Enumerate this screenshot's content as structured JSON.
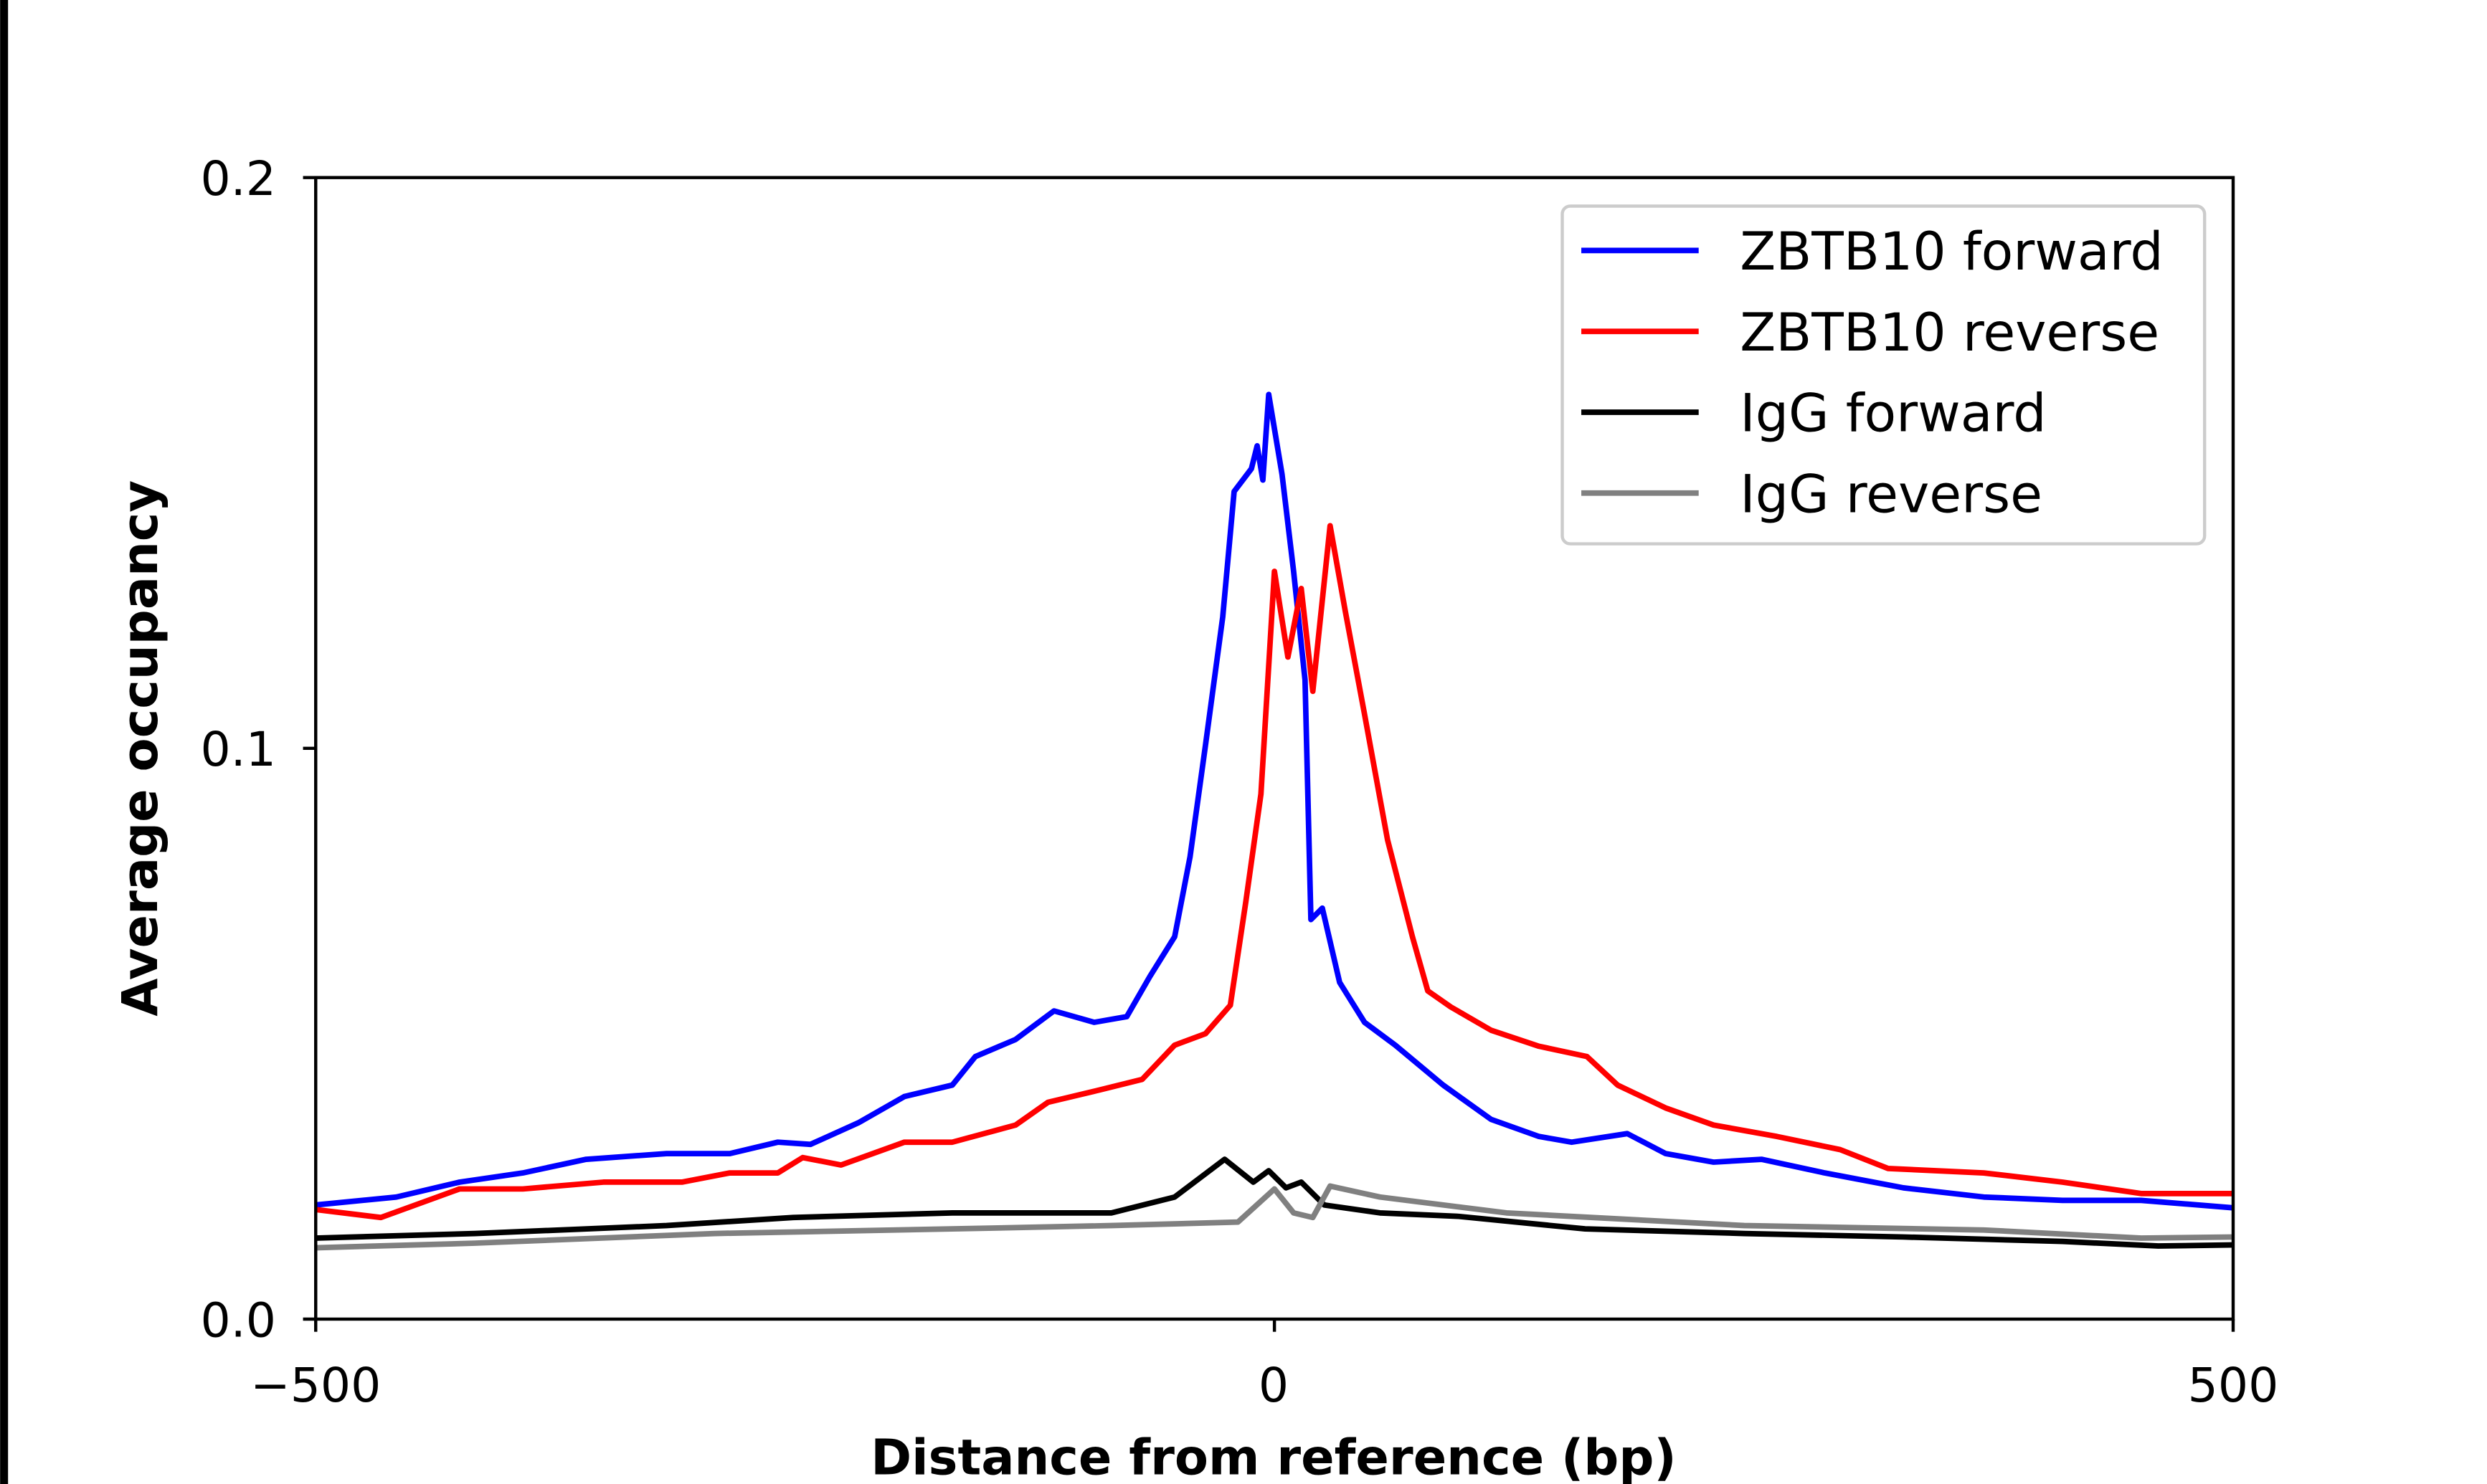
{
  "chart_data": {
    "type": "line",
    "title": "",
    "xlabel": "Distance from reference (bp)",
    "ylabel": "Average occupancy",
    "xlim": [
      -500,
      500
    ],
    "ylim": [
      0.0,
      0.2
    ],
    "xticks": [
      -500,
      0,
      500
    ],
    "xtick_labels": [
      "−500",
      "0",
      "500"
    ],
    "yticks": [
      0.0,
      0.1,
      0.2
    ],
    "ytick_labels": [
      "0.0",
      "0.1",
      "0.2"
    ],
    "grid": false,
    "legend_position": "top-right",
    "series": [
      {
        "name": "ZBTB10 forward",
        "color": "#0000ff",
        "x": [
          -500,
          -458,
          -425,
          -392,
          -359,
          -317,
          -284,
          -259,
          -242,
          -217,
          -193,
          -168,
          -156,
          -135,
          -115,
          -94,
          -77,
          -65,
          -52,
          -44,
          -36,
          -27,
          -21,
          -12,
          -9,
          -6,
          -3,
          4,
          10,
          16,
          19,
          25,
          34,
          47,
          63,
          88,
          113,
          138,
          155,
          184,
          204,
          229,
          254,
          287,
          328,
          370,
          411,
          452,
          500
        ],
        "y": [
          0.02,
          0.0214,
          0.024,
          0.0256,
          0.028,
          0.029,
          0.029,
          0.031,
          0.0306,
          0.0344,
          0.039,
          0.041,
          0.046,
          0.049,
          0.054,
          0.052,
          0.053,
          0.06,
          0.067,
          0.081,
          0.1005,
          0.123,
          0.145,
          0.149,
          0.153,
          0.147,
          0.162,
          0.148,
          0.131,
          0.112,
          0.07,
          0.072,
          0.059,
          0.052,
          0.048,
          0.041,
          0.035,
          0.032,
          0.031,
          0.0325,
          0.029,
          0.0275,
          0.028,
          0.0256,
          0.023,
          0.0214,
          0.0208,
          0.0208,
          0.0195
        ]
      },
      {
        "name": "ZBTB10 reverse",
        "color": "#ff0000",
        "x": [
          -500,
          -466,
          -425,
          -392,
          -350,
          -309,
          -284,
          -259,
          -246,
          -226,
          -193,
          -168,
          -135,
          -118,
          -93,
          -69,
          -52,
          -36,
          -23,
          -15,
          -7,
          0,
          7,
          14,
          20,
          29,
          37,
          47,
          59,
          72,
          80,
          92,
          113,
          138,
          163,
          179,
          204,
          229,
          262,
          295,
          320,
          370,
          411,
          452,
          500
        ],
        "y": [
          0.0192,
          0.0178,
          0.0228,
          0.0228,
          0.024,
          0.024,
          0.0256,
          0.0256,
          0.0283,
          0.027,
          0.031,
          0.031,
          0.034,
          0.038,
          0.04,
          0.042,
          0.048,
          0.05,
          0.055,
          0.073,
          0.092,
          0.131,
          0.116,
          0.128,
          0.11,
          0.139,
          0.124,
          0.106,
          0.084,
          0.067,
          0.0575,
          0.0547,
          0.0506,
          0.0478,
          0.046,
          0.041,
          0.037,
          0.034,
          0.032,
          0.0297,
          0.0264,
          0.0256,
          0.024,
          0.022,
          0.022
        ]
      },
      {
        "name": "IgG forward",
        "color": "#000000",
        "x": [
          -500,
          -417,
          -317,
          -251,
          -168,
          -85,
          -52,
          -26,
          -11,
          -3,
          6,
          14,
          26,
          55,
          96,
          162,
          245,
          328,
          411,
          461,
          500
        ],
        "y": [
          0.0142,
          0.015,
          0.0164,
          0.0178,
          0.0186,
          0.0186,
          0.0214,
          0.028,
          0.024,
          0.026,
          0.023,
          0.024,
          0.02,
          0.0186,
          0.018,
          0.0158,
          0.015,
          0.0144,
          0.0136,
          0.0128,
          0.013
        ]
      },
      {
        "name": "IgG reverse",
        "color": "#808080",
        "x": [
          -500,
          -417,
          -292,
          -168,
          -85,
          -19,
          0,
          10,
          20,
          29,
          55,
          121,
          245,
          370,
          452,
          500
        ],
        "y": [
          0.0125,
          0.0133,
          0.015,
          0.0158,
          0.0164,
          0.017,
          0.0228,
          0.0186,
          0.0178,
          0.0233,
          0.0214,
          0.0186,
          0.0164,
          0.0156,
          0.0142,
          0.0144
        ]
      }
    ]
  }
}
